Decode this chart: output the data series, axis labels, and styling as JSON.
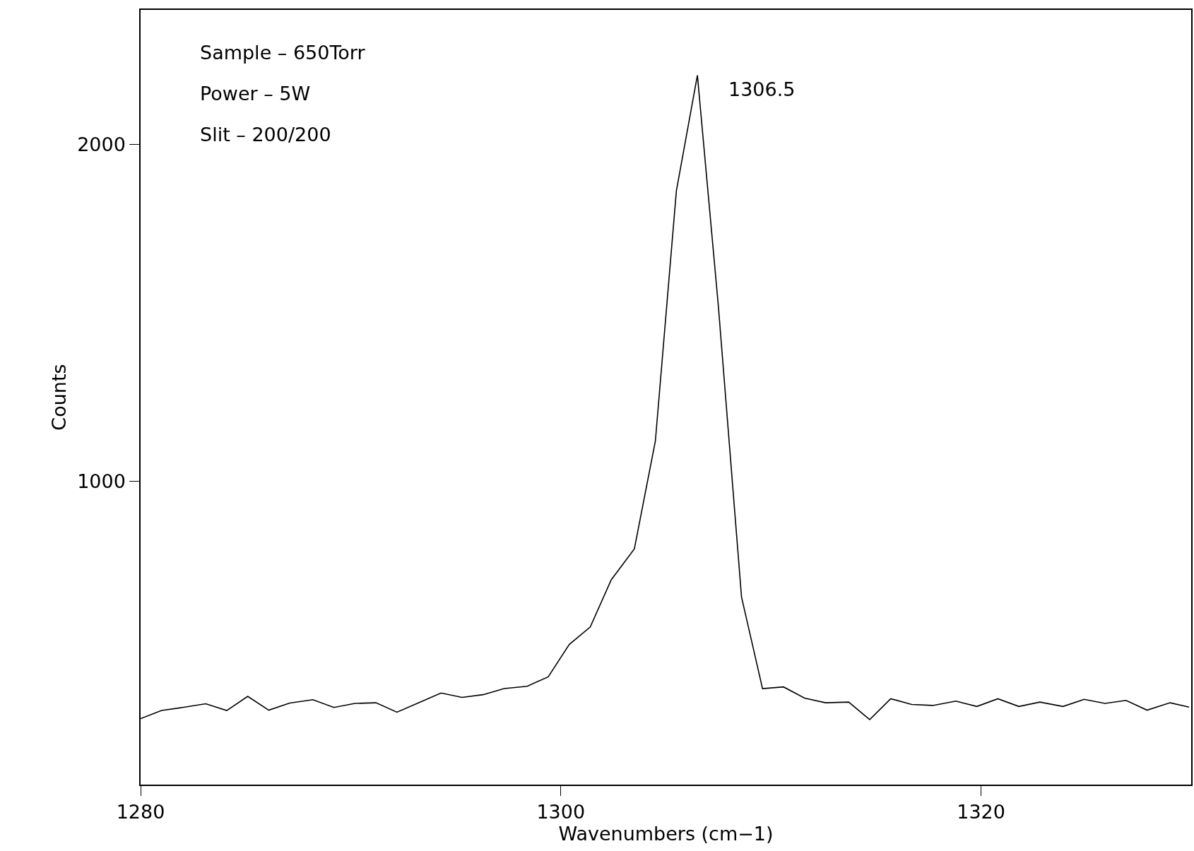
{
  "chart_data": {
    "type": "line",
    "xlabel": "Wavenumbers (cm−1)",
    "ylabel": "Counts",
    "x": [
      1280.0,
      1281.0,
      1282.0,
      1283.1,
      1284.1,
      1285.1,
      1286.1,
      1287.1,
      1288.2,
      1289.2,
      1290.2,
      1291.2,
      1292.2,
      1293.3,
      1294.3,
      1295.3,
      1296.3,
      1297.3,
      1298.4,
      1299.4,
      1300.4,
      1301.4,
      1302.4,
      1303.5,
      1304.5,
      1305.5,
      1306.5,
      1307.5,
      1308.6,
      1309.6,
      1310.6,
      1311.6,
      1312.6,
      1313.7,
      1314.7,
      1315.7,
      1316.7,
      1317.7,
      1318.8,
      1319.8,
      1320.8,
      1321.8,
      1322.8,
      1323.9,
      1324.9,
      1325.9,
      1326.9,
      1327.9,
      1329.0,
      1329.9
    ],
    "series": [
      {
        "color": "#000000",
        "values": [
          296,
          320,
          329,
          340,
          320,
          362,
          321,
          342,
          352,
          329,
          341,
          343,
          315,
          345,
          372,
          359,
          367,
          385,
          392,
          420,
          516,
          568,
          708,
          800,
          1120,
          1863,
          2206,
          1519,
          657,
          385,
          390,
          357,
          343,
          345,
          293,
          355,
          338,
          335,
          348,
          332,
          355,
          332,
          345,
          332,
          353,
          341,
          350,
          321,
          343,
          330
        ]
      }
    ],
    "xlim": [
      1280,
      1330
    ],
    "ylim": [
      100,
      2400
    ],
    "xticks": [
      1280,
      1300,
      1320
    ],
    "yticks": [
      1000,
      2000
    ],
    "legend": false,
    "marker": "none",
    "line_style": "solid",
    "annotations": [
      {
        "text": "1306.5",
        "x": 1306.5,
        "y": 2206
      },
      "Sample – 650Torr",
      "Power – 5W",
      "Slit – 200/200"
    ]
  }
}
